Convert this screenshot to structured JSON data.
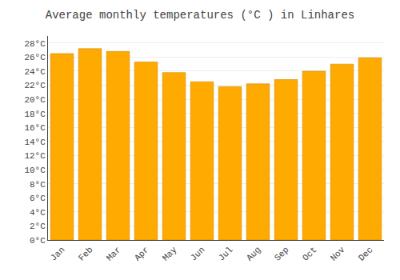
{
  "chart_data": {
    "type": "bar",
    "title": "Average monthly temperatures (°C ) in Linhares",
    "categories": [
      "Jan",
      "Feb",
      "Mar",
      "Apr",
      "May",
      "Jun",
      "Jul",
      "Aug",
      "Sep",
      "Oct",
      "Nov",
      "Dec"
    ],
    "values": [
      26.5,
      27.2,
      26.8,
      25.3,
      23.8,
      22.5,
      21.8,
      22.2,
      22.8,
      24.0,
      25.0,
      25.9
    ],
    "color": "#FFAA00",
    "ylim": [
      0,
      29
    ],
    "yticks": [
      {
        "value": 0,
        "label": "0°C"
      },
      {
        "value": 2,
        "label": "2°C"
      },
      {
        "value": 4,
        "label": "4°C"
      },
      {
        "value": 6,
        "label": "6°C"
      },
      {
        "value": 8,
        "label": "8°C"
      },
      {
        "value": 10,
        "label": "10°C"
      },
      {
        "value": 12,
        "label": "12°C"
      },
      {
        "value": 14,
        "label": "14°C"
      },
      {
        "value": 16,
        "label": "16°C"
      },
      {
        "value": 18,
        "label": "18°C"
      },
      {
        "value": 20,
        "label": "20°C"
      },
      {
        "value": 22,
        "label": "22°C"
      },
      {
        "value": 24,
        "label": "24°C"
      },
      {
        "value": 26,
        "label": "26°C"
      },
      {
        "value": 28,
        "label": "28°C"
      }
    ],
    "grid": true
  }
}
